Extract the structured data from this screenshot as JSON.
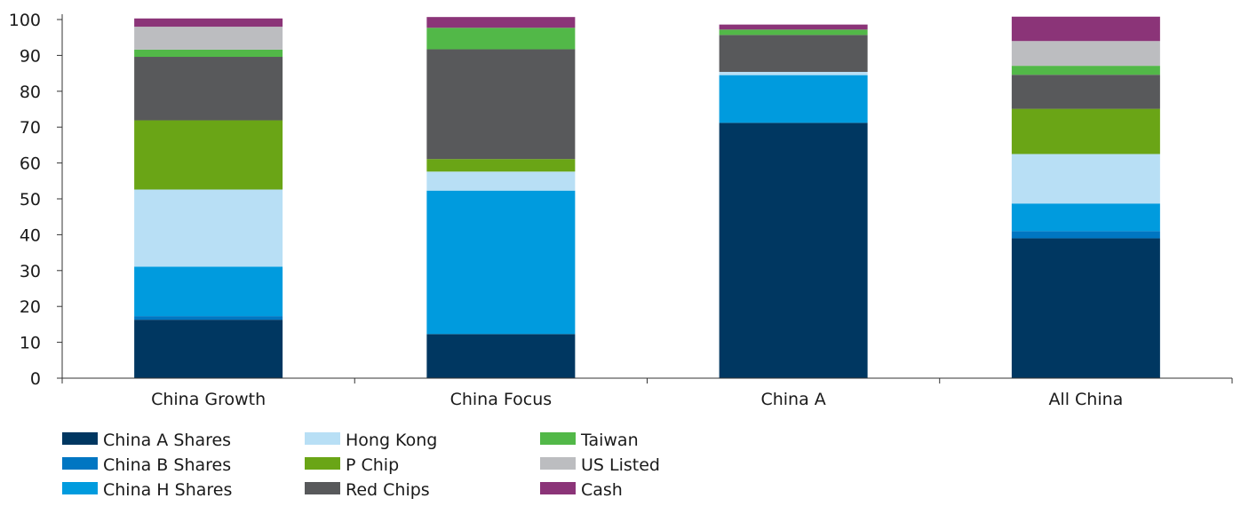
{
  "chart_data": {
    "type": "bar",
    "stacked": true,
    "categories": [
      "China Growth",
      "China Focus",
      "China A",
      "All China"
    ],
    "ylim": [
      0,
      100
    ],
    "yticks": [
      "0",
      "10",
      "20",
      "30",
      "40",
      "50",
      "60",
      "70",
      "80",
      "90",
      "100"
    ],
    "grid": false,
    "legend_position": "bottom-left",
    "series": [
      {
        "name": "China A Shares",
        "color": "#003761",
        "values": [
          16.3,
          12.3,
          71.2,
          39.0
        ]
      },
      {
        "name": "China B Shares",
        "color": "#0076C2",
        "values": [
          1.0,
          0.0,
          0.0,
          2.0
        ]
      },
      {
        "name": "China H Shares",
        "color": "#009BDE",
        "values": [
          13.8,
          40.0,
          13.3,
          7.7
        ]
      },
      {
        "name": "Hong Kong",
        "color": "#B8DFF5",
        "values": [
          21.5,
          5.3,
          0.9,
          13.8
        ]
      },
      {
        "name": "P Chip",
        "color": "#6AA516",
        "values": [
          19.3,
          3.5,
          0.0,
          12.6
        ]
      },
      {
        "name": "Red Chips",
        "color": "#58595B",
        "values": [
          17.7,
          30.6,
          10.3,
          9.5
        ]
      },
      {
        "name": "Taiwan",
        "color": "#52B848",
        "values": [
          2.0,
          6.0,
          1.5,
          2.5
        ]
      },
      {
        "name": "US Listed",
        "color": "#BCBDC0",
        "values": [
          6.4,
          0.0,
          0.0,
          6.9
        ]
      },
      {
        "name": "Cash",
        "color": "#8B3478",
        "values": [
          2.3,
          3.0,
          1.4,
          6.8
        ]
      }
    ]
  }
}
